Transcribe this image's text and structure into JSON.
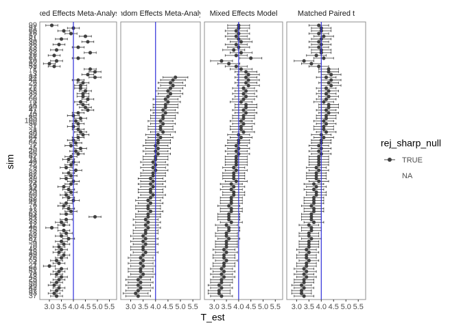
{
  "chart_data": {
    "type": "forest",
    "x_label": "T_est",
    "y_label": "sim",
    "categories": [
      99,
      91,
      66,
      16,
      57,
      81,
      30,
      36,
      73,
      88,
      32,
      18,
      61,
      10,
      92,
      53,
      71,
      5,
      13,
      84,
      44,
      26,
      2,
      77,
      58,
      35,
      22,
      60,
      8,
      14,
      69,
      47,
      74,
      40,
      85,
      100,
      56,
      31,
      1,
      38,
      50,
      64,
      27,
      86,
      7,
      45,
      20,
      95,
      62,
      11,
      49,
      72,
      29,
      3,
      82,
      67,
      39,
      55,
      24,
      19,
      34,
      79,
      90,
      52,
      68,
      41,
      6,
      17,
      23,
      63,
      94,
      83,
      33,
      12,
      46,
      75,
      28,
      62,
      87,
      54,
      9,
      70,
      48,
      15,
      89,
      76,
      65,
      4,
      21,
      96,
      51,
      78,
      43,
      25,
      59,
      80,
      42,
      97,
      93,
      37
    ],
    "panels": [
      {
        "title": "Fixed Effects Meta-Analysis",
        "error": 0.25,
        "values": [
          3.1,
          4.0,
          3.6,
          3.9,
          4.5,
          3.5,
          4.6,
          3.4,
          4.2,
          3.3,
          4.7,
          3.2,
          4.2,
          3.3,
          3.0,
          3.2,
          4.7,
          4.9,
          4.6,
          4.9,
          4.2,
          4.4,
          4.3,
          4.3,
          4.5,
          4.4,
          4.4,
          4.6,
          4.3,
          4.4,
          4.5,
          4.6,
          4.2,
          4.0,
          4.3,
          4.1,
          4.2,
          4.0,
          4.2,
          4.3,
          4.4,
          4.2,
          4.0,
          4.1,
          3.9,
          4.3,
          4.1,
          4.2,
          3.9,
          3.8,
          4.0,
          3.9,
          3.7,
          4.1,
          3.8,
          3.9,
          3.7,
          4.0,
          3.9,
          3.6,
          3.8,
          3.9,
          3.7,
          3.8,
          4.0,
          3.7,
          3.6,
          3.8,
          3.9,
          3.7,
          4.9,
          3.7,
          3.5,
          3.6,
          3.1,
          3.6,
          3.7,
          3.5,
          3.8,
          3.5,
          3.6,
          3.4,
          3.5,
          3.4,
          3.6,
          3.5,
          3.3,
          3.4,
          3.0,
          3.5,
          3.4,
          3.3,
          3.5,
          3.4,
          3.3,
          3.2,
          3.4,
          3.3,
          3.2,
          3.3
        ]
      },
      {
        "title": "Random Effects Meta-Analysis",
        "error": 0.5,
        "values": [
          null,
          null,
          null,
          null,
          null,
          null,
          null,
          null,
          null,
          null,
          null,
          null,
          null,
          null,
          null,
          null,
          null,
          null,
          null,
          4.8,
          4.7,
          4.6,
          4.7,
          4.6,
          4.5,
          4.6,
          4.5,
          4.4,
          4.5,
          4.4,
          4.4,
          4.3,
          4.4,
          4.3,
          4.3,
          4.2,
          4.3,
          4.2,
          4.2,
          4.3,
          4.1,
          4.2,
          4.1,
          4.1,
          4.0,
          4.1,
          4.0,
          4.1,
          4.0,
          4.0,
          3.9,
          4.0,
          3.9,
          4.0,
          3.9,
          3.9,
          3.8,
          3.9,
          3.8,
          3.9,
          3.8,
          3.8,
          3.9,
          3.8,
          3.7,
          3.8,
          3.7,
          3.7,
          3.8,
          3.7,
          3.7,
          3.6,
          3.7,
          3.6,
          3.7,
          3.6,
          3.6,
          3.5,
          3.6,
          3.5,
          3.6,
          3.5,
          3.5,
          3.6,
          3.5,
          3.4,
          3.5,
          3.4,
          3.5,
          3.4,
          3.4,
          3.5,
          3.4,
          3.3,
          3.4,
          3.3,
          3.4,
          3.3,
          3.2,
          3.3
        ]
      },
      {
        "title": "Mixed Effects Model",
        "error": 0.45,
        "values": [
          4.0,
          4.0,
          3.9,
          4.0,
          3.9,
          4.0,
          4.1,
          3.9,
          4.0,
          3.8,
          4.1,
          3.9,
          4.5,
          3.3,
          3.6,
          3.9,
          4.1,
          4.3,
          4.4,
          4.3,
          4.4,
          4.3,
          4.4,
          4.2,
          4.3,
          4.2,
          4.3,
          4.2,
          4.1,
          4.3,
          4.3,
          4.2,
          4.3,
          4.2,
          4.2,
          4.1,
          4.2,
          4.1,
          4.1,
          4.2,
          4.0,
          4.1,
          4.0,
          4.0,
          3.9,
          4.0,
          3.9,
          4.0,
          3.9,
          3.9,
          3.9,
          3.9,
          3.8,
          3.9,
          3.8,
          3.8,
          3.8,
          3.9,
          3.7,
          3.8,
          3.7,
          3.8,
          3.8,
          3.7,
          3.7,
          3.7,
          3.6,
          3.7,
          3.7,
          3.6,
          3.6,
          3.6,
          3.7,
          3.5,
          3.6,
          3.6,
          3.5,
          3.5,
          3.6,
          3.5,
          3.5,
          3.5,
          3.4,
          3.5,
          3.4,
          3.4,
          3.5,
          3.4,
          3.4,
          3.3,
          3.4,
          3.3,
          3.4,
          3.3,
          3.3,
          3.2,
          3.3,
          3.2,
          3.2,
          3.3
        ]
      },
      {
        "title": "Matched Paired t",
        "error": 0.4,
        "values": [
          3.9,
          4.0,
          4.0,
          3.9,
          4.1,
          4.0,
          3.9,
          4.0,
          3.9,
          4.0,
          4.0,
          3.8,
          4.1,
          3.3,
          3.6,
          3.9,
          4.3,
          4.3,
          4.4,
          4.2,
          4.4,
          4.3,
          4.4,
          4.2,
          4.3,
          4.2,
          4.3,
          4.2,
          4.1,
          4.3,
          4.3,
          4.2,
          4.3,
          4.2,
          4.2,
          4.1,
          4.2,
          4.1,
          4.1,
          4.2,
          4.0,
          4.1,
          4.0,
          4.0,
          3.9,
          4.0,
          3.9,
          4.0,
          3.9,
          3.9,
          3.9,
          3.9,
          3.8,
          3.9,
          3.8,
          3.8,
          3.8,
          3.9,
          3.7,
          3.8,
          3.7,
          3.8,
          3.8,
          3.7,
          3.7,
          3.7,
          3.6,
          3.7,
          3.7,
          3.6,
          3.6,
          3.6,
          3.7,
          3.5,
          3.6,
          3.6,
          3.5,
          3.5,
          3.6,
          3.5,
          3.5,
          3.5,
          3.4,
          3.5,
          3.4,
          3.4,
          3.5,
          3.4,
          3.4,
          3.3,
          3.4,
          3.3,
          3.4,
          3.3,
          3.3,
          3.2,
          3.3,
          3.2,
          3.2,
          3.3
        ]
      }
    ],
    "xlim": [
      2.6,
      5.8
    ],
    "xticks": [
      {
        "value": 3,
        "label": "3.0"
      },
      3.5,
      {
        "value": 4,
        "label": "4.0"
      },
      4.5,
      {
        "value": 5,
        "label": "5.0"
      },
      5.5
    ],
    "reference_line": 4,
    "reference_color": "#2b2bd9",
    "color": "#404040",
    "legend": {
      "title": "rej_sharp_null",
      "entries": [
        "TRUE",
        "NA"
      ]
    }
  }
}
